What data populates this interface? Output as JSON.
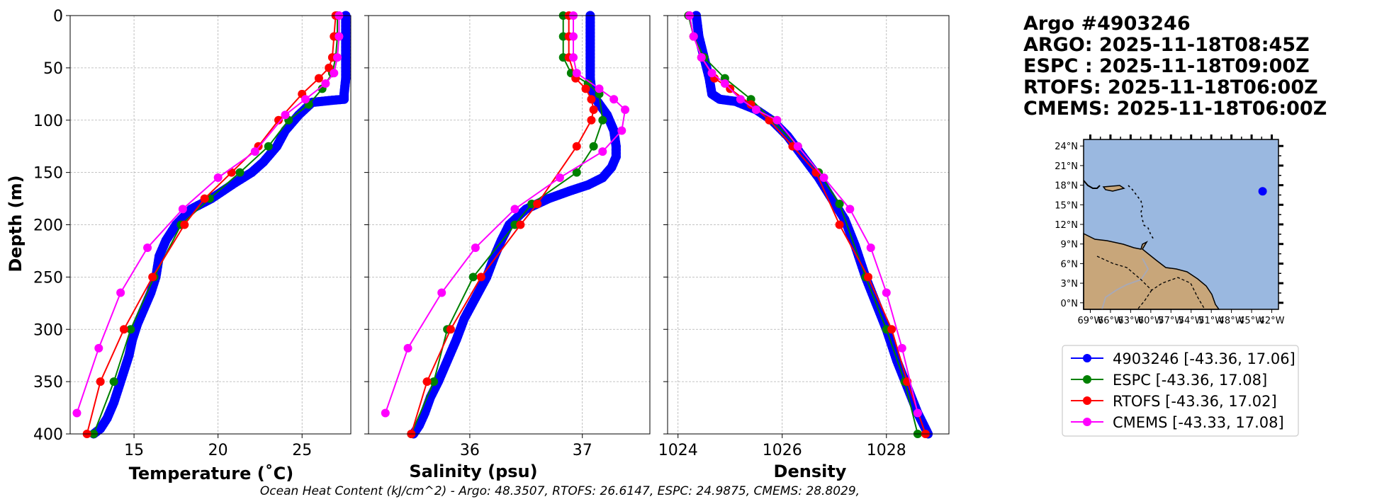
{
  "header": {
    "lines": [
      "Argo #4903246",
      "ARGO: 2025-11-18T08:45Z",
      "ESPC : 2025-11-18T09:00Z",
      "RTOFS: 2025-11-18T06:00Z",
      "CMEMS: 2025-11-18T06:00Z"
    ]
  },
  "footer": "Ocean Heat Content (kJ/cm^2) - Argo: 48.3507,  RTOFS: 26.6147,  ESPC: 24.9875,  CMEMS: 28.8029,",
  "colors": {
    "argo": "#0000ff",
    "espc": "#008000",
    "rtofs": "#ff0000",
    "cmems": "#ff00ff",
    "ocean": "#9ab8e0",
    "land": "#c8a67a"
  },
  "legend": {
    "entries": [
      {
        "key": "argo",
        "label": "4903246 [-43.36, 17.06]"
      },
      {
        "key": "espc",
        "label": "ESPC [-43.36, 17.08]"
      },
      {
        "key": "rtofs",
        "label": "RTOFS [-43.36, 17.02]"
      },
      {
        "key": "cmems",
        "label": "CMEMS [-43.33, 17.08]"
      }
    ]
  },
  "map": {
    "lat_labels": [
      "24°N",
      "21°N",
      "18°N",
      "15°N",
      "12°N",
      "9°N",
      "6°N",
      "3°N",
      "0°N"
    ],
    "lon_labels": [
      "69°W",
      "66°W",
      "63°W",
      "60°W",
      "57°W",
      "54°W",
      "51°W",
      "48°W",
      "45°W",
      "42°W"
    ],
    "float_lon": -43.36,
    "float_lat": 17.06,
    "lon_range": [
      -70,
      -41
    ],
    "lat_range": [
      -1,
      25
    ]
  },
  "chart_data": {
    "type": "line",
    "ylabel": "Depth (m)",
    "ylim": [
      400,
      0
    ],
    "yticks": [
      0,
      50,
      100,
      150,
      200,
      250,
      300,
      350,
      400
    ],
    "panels": [
      {
        "id": "temperature",
        "xlabel": "Temperature (˚C)",
        "xlim": [
          11.2,
          27.9
        ],
        "xticks": [
          15,
          20,
          25
        ],
        "series": [
          {
            "name": "4903246",
            "key": "argo",
            "dense": true,
            "x": [
              27.6,
              27.6,
              27.6,
              27.5,
              27.5,
              26.8,
              25.6,
              24.8,
              24.0,
              23.5,
              22.7,
              22.0,
              21.0,
              19.6,
              18.4,
              17.5,
              16.9,
              16.5,
              16.3,
              16.0,
              15.6,
              15.2,
              14.9,
              14.7,
              14.4,
              14.1,
              13.8,
              13.4,
              13.0,
              12.6
            ],
            "y": [
              0,
              30,
              60,
              75,
              80,
              81,
              83,
              95,
              110,
              125,
              140,
              150,
              160,
              175,
              185,
              200,
              215,
              230,
              250,
              265,
              280,
              295,
              310,
              325,
              340,
              355,
              370,
              385,
              395,
              400
            ]
          },
          {
            "name": "ESPC",
            "key": "espc",
            "x": [
              27.1,
              27.1,
              27.0,
              26.8,
              26.2,
              25.4,
              24.2,
              23.0,
              21.3,
              19.5,
              17.8,
              16.2,
              14.8,
              13.8,
              12.6
            ],
            "y": [
              0,
              20,
              40,
              55,
              70,
              85,
              100,
              125,
              150,
              175,
              200,
              250,
              300,
              350,
              400
            ]
          },
          {
            "name": "RTOFS",
            "key": "rtofs",
            "x": [
              27.0,
              26.9,
              26.8,
              26.6,
              26.0,
              25.0,
              23.6,
              22.4,
              20.8,
              19.2,
              18.0,
              16.1,
              14.4,
              13.0,
              12.2
            ],
            "y": [
              0,
              20,
              40,
              50,
              60,
              75,
              100,
              125,
              150,
              175,
              200,
              250,
              300,
              350,
              400
            ]
          },
          {
            "name": "CMEMS",
            "key": "cmems",
            "x": [
              27.2,
              27.2,
              27.1,
              26.9,
              26.4,
              25.2,
              24.0,
              22.2,
              20.0,
              17.9,
              15.8,
              14.2,
              12.9,
              11.6
            ],
            "y": [
              0,
              20,
              40,
              55,
              65,
              80,
              95,
              130,
              155,
              185,
              222,
              265,
              318,
              380
            ]
          }
        ]
      },
      {
        "id": "salinity",
        "xlabel": "Salinity (psu)",
        "xlim": [
          35.1,
          37.6
        ],
        "xticks": [
          36,
          37
        ],
        "series": [
          {
            "name": "4903246",
            "key": "argo",
            "dense": true,
            "x": [
              37.07,
              37.07,
              37.07,
              37.07,
              37.08,
              37.12,
              37.22,
              37.28,
              37.3,
              37.3,
              37.26,
              37.18,
              37.05,
              36.88,
              36.7,
              36.5,
              36.35,
              36.28,
              36.22,
              36.15,
              36.05,
              35.95,
              35.88,
              35.8,
              35.72,
              35.65,
              35.6,
              35.55,
              35.5
            ],
            "y": [
              0,
              20,
              40,
              60,
              70,
              80,
              95,
              110,
              125,
              135,
              145,
              155,
              162,
              168,
              175,
              185,
              200,
              215,
              230,
              250,
              270,
              290,
              310,
              330,
              350,
              365,
              380,
              392,
              400
            ]
          },
          {
            "name": "ESPC",
            "key": "espc",
            "x": [
              36.83,
              36.83,
              36.83,
              36.9,
              37.05,
              37.15,
              37.18,
              37.1,
              36.95,
              36.55,
              36.4,
              36.03,
              35.8,
              35.68,
              35.48
            ],
            "y": [
              0,
              20,
              40,
              55,
              65,
              75,
              100,
              125,
              150,
              180,
              200,
              250,
              300,
              350,
              400
            ]
          },
          {
            "name": "RTOFS",
            "key": "rtofs",
            "x": [
              36.88,
              36.88,
              36.88,
              36.94,
              37.03,
              37.08,
              37.1,
              37.08,
              36.95,
              36.6,
              36.45,
              36.1,
              35.83,
              35.62,
              35.48
            ],
            "y": [
              0,
              20,
              40,
              60,
              70,
              80,
              90,
              100,
              125,
              180,
              200,
              250,
              300,
              350,
              400
            ]
          },
          {
            "name": "CMEMS",
            "key": "cmems",
            "x": [
              36.92,
              36.92,
              36.92,
              36.95,
              37.15,
              37.28,
              37.38,
              37.35,
              37.18,
              36.8,
              36.4,
              36.05,
              35.75,
              35.45,
              35.25
            ],
            "y": [
              0,
              20,
              40,
              55,
              70,
              80,
              90,
              110,
              130,
              155,
              185,
              222,
              265,
              318,
              380
            ]
          }
        ]
      },
      {
        "id": "density",
        "xlabel": "Density",
        "xlim": [
          1023.8,
          1029.2
        ],
        "xticks": [
          1024,
          1026,
          1028
        ],
        "series": [
          {
            "name": "4903246",
            "key": "argo",
            "dense": true,
            "x": [
              1024.35,
              1024.4,
              1024.5,
              1024.6,
              1024.65,
              1024.8,
              1025.1,
              1025.5,
              1025.8,
              1026.1,
              1026.4,
              1026.7,
              1026.95,
              1027.2,
              1027.4,
              1027.6,
              1027.8,
              1028.0,
              1028.2,
              1028.4,
              1028.6,
              1028.8
            ],
            "y": [
              0,
              20,
              40,
              60,
              75,
              80,
              82,
              90,
              100,
              115,
              135,
              155,
              175,
              195,
              220,
              250,
              275,
              300,
              330,
              355,
              380,
              400
            ]
          },
          {
            "name": "ESPC",
            "key": "espc",
            "x": [
              1024.2,
              1024.3,
              1024.5,
              1024.9,
              1025.4,
              1025.8,
              1026.3,
              1026.7,
              1027.1,
              1027.6,
              1028.0,
              1028.35,
              1028.6
            ],
            "y": [
              0,
              20,
              40,
              60,
              80,
              100,
              125,
              150,
              180,
              250,
              300,
              350,
              400
            ]
          },
          {
            "name": "RTOFS",
            "key": "rtofs",
            "x": [
              1024.22,
              1024.3,
              1024.45,
              1024.7,
              1025.0,
              1025.4,
              1025.75,
              1026.2,
              1026.65,
              1027.1,
              1027.65,
              1028.1,
              1028.4,
              1028.75
            ],
            "y": [
              0,
              20,
              40,
              60,
              70,
              85,
              100,
              125,
              150,
              200,
              250,
              300,
              350,
              400
            ]
          },
          {
            "name": "CMEMS",
            "key": "cmems",
            "x": [
              1024.22,
              1024.3,
              1024.45,
              1024.65,
              1024.9,
              1025.2,
              1025.5,
              1025.9,
              1026.3,
              1026.8,
              1027.3,
              1027.7,
              1028.0,
              1028.3,
              1028.6
            ],
            "y": [
              0,
              20,
              40,
              55,
              65,
              80,
              90,
              100,
              125,
              155,
              185,
              222,
              265,
              318,
              380
            ]
          }
        ]
      }
    ]
  }
}
